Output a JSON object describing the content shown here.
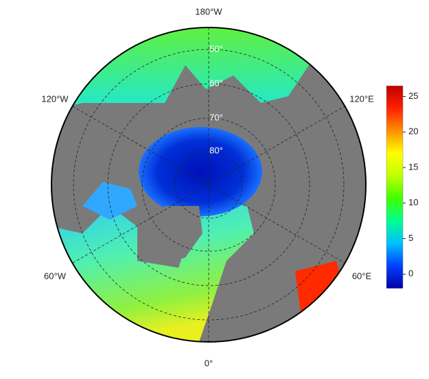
{
  "map": {
    "longitude_labels": [
      "180°W",
      "120°W",
      "120°E",
      "60°W",
      "60°E",
      "0°"
    ],
    "latitude_labels": [
      "50°",
      "60°",
      "70°",
      "80°"
    ],
    "colorbar": {
      "range": [
        -2,
        26.5
      ],
      "ticks": [
        0,
        5,
        10,
        15,
        20,
        25
      ],
      "colors": [
        "#0000a8",
        "#0040ff",
        "#00c0ff",
        "#00ff90",
        "#40ff00",
        "#c0ff00",
        "#ffff00",
        "#ff9000",
        "#ff2000",
        "#c00000"
      ]
    }
  }
}
